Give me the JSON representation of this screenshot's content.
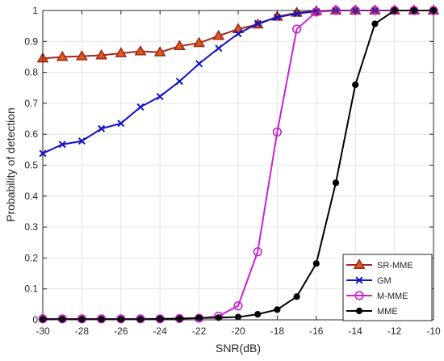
{
  "chart_data": {
    "type": "line",
    "title": "",
    "xlabel": "SNR(dB)",
    "ylabel": "Probability of detection",
    "xlim": [
      -30,
      -10
    ],
    "ylim": [
      0,
      1
    ],
    "xticks": [
      -30,
      -28,
      -26,
      -24,
      -22,
      -20,
      -18,
      -16,
      -14,
      -12,
      -10
    ],
    "xtick_labels": [
      "-30",
      "-28",
      "-26",
      "-24",
      "-22",
      "-20",
      "-18",
      "-16",
      "-14",
      "-12",
      "-10"
    ],
    "yticks": [
      0,
      0.1,
      0.2,
      0.3,
      0.4,
      0.5,
      0.6,
      0.7,
      0.8,
      0.9,
      1
    ],
    "ytick_labels": [
      "0",
      "0.1",
      "0.2",
      "0.3",
      "0.4",
      "0.5",
      "0.6",
      "0.7",
      "0.8",
      "0.9",
      "1"
    ],
    "grid": true,
    "legend_position": "bottom-right",
    "x": [
      -30,
      -29,
      -28,
      -27,
      -26,
      -25,
      -24,
      -23,
      -22,
      -21,
      -20,
      -19,
      -18,
      -17,
      -16,
      -15,
      -14,
      -13,
      -12,
      -11,
      -10
    ],
    "series": [
      {
        "name": "SR-MME",
        "color": "#a0281c",
        "marker": "triangle",
        "values": [
          0.845,
          0.85,
          0.852,
          0.855,
          0.862,
          0.868,
          0.865,
          0.885,
          0.895,
          0.918,
          0.94,
          0.955,
          0.98,
          0.993,
          0.998,
          1.0,
          1.0,
          1.0,
          1.0,
          1.0,
          1.0
        ]
      },
      {
        "name": "GM",
        "color": "#1212c8",
        "marker": "x",
        "values": [
          0.538,
          0.567,
          0.578,
          0.618,
          0.635,
          0.688,
          0.722,
          0.771,
          0.828,
          0.878,
          0.925,
          0.958,
          0.978,
          0.99,
          0.997,
          1.0,
          1.0,
          1.0,
          1.0,
          1.0,
          1.0
        ]
      },
      {
        "name": "M-MME",
        "color": "#c822d4",
        "marker": "circle",
        "values": [
          0.003,
          0.003,
          0.003,
          0.003,
          0.003,
          0.003,
          0.003,
          0.004,
          0.005,
          0.012,
          0.045,
          0.22,
          0.607,
          0.94,
          0.995,
          1.0,
          1.0,
          1.0,
          1.0,
          1.0,
          1.0
        ]
      },
      {
        "name": "MME",
        "color": "#000000",
        "marker": "dot",
        "values": [
          0.002,
          0.002,
          0.002,
          0.002,
          0.002,
          0.002,
          0.003,
          0.004,
          0.006,
          0.007,
          0.009,
          0.018,
          0.033,
          0.075,
          0.182,
          0.443,
          0.76,
          0.957,
          1.0,
          1.0,
          1.0
        ]
      }
    ]
  }
}
